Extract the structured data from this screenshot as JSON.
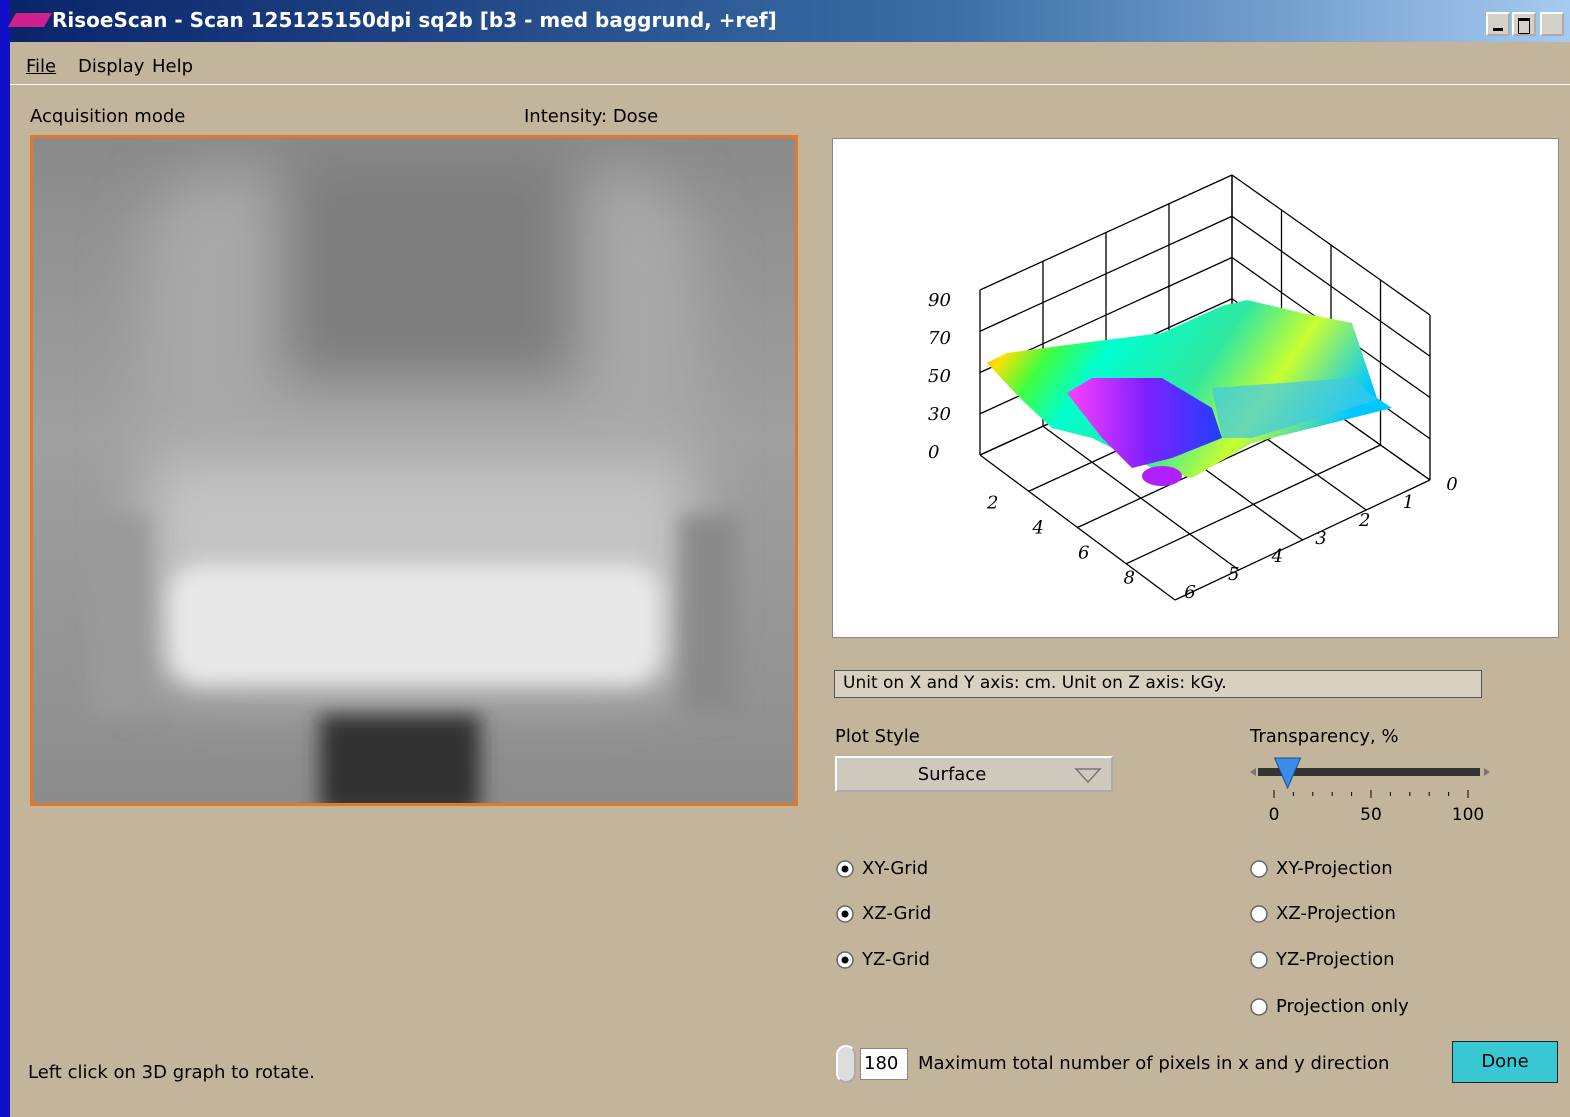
{
  "window": {
    "title": "RisoeScan - Scan 125125150dpi sq2b [b3 - med baggrund, +ref]"
  },
  "menu": [
    "File",
    "Display",
    "Help"
  ],
  "left_panel": {
    "mode_label": "Acquisition mode",
    "intensity_label": "Intensity: Dose",
    "status": "Left click on 3D graph to rotate."
  },
  "plot": {
    "z_ticks": [
      0,
      30,
      50,
      70,
      90
    ],
    "x_ticks": [
      2,
      4,
      6,
      8
    ],
    "y_ticks": [
      0,
      1,
      2,
      3,
      4,
      5,
      6
    ]
  },
  "unit_text": "Unit on X and Y axis: cm. Unit on Z axis: kGy.",
  "plot_style": {
    "label": "Plot Style",
    "value": "Surface"
  },
  "transparency": {
    "label": "Transparency, %",
    "value": 7,
    "range": [
      0,
      100
    ],
    "ticks": [
      0,
      50,
      100
    ]
  },
  "grids": [
    {
      "label": "XY-Grid",
      "checked": true
    },
    {
      "label": "XZ-Grid",
      "checked": true
    },
    {
      "label": "YZ-Grid",
      "checked": true
    }
  ],
  "projections": [
    {
      "label": "XY-Projection",
      "checked": false
    },
    {
      "label": "XZ-Projection",
      "checked": false
    },
    {
      "label": "YZ-Projection",
      "checked": false
    },
    {
      "label": "Projection only",
      "checked": false
    }
  ],
  "pixels": {
    "value": 180,
    "label": "Maximum total number of pixels in x and y direction"
  },
  "done": "Done"
}
